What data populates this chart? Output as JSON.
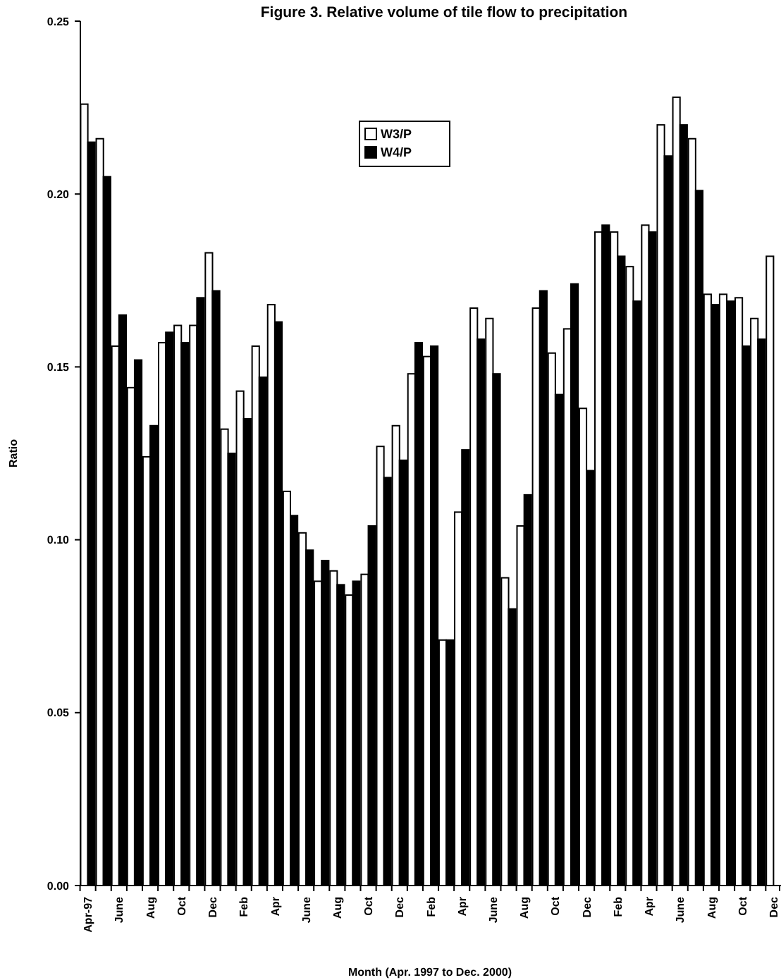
{
  "chart_data": {
    "type": "bar",
    "title": "Figure 3. Relative volume of tile flow to precipitation",
    "xlabel": "Month (Apr. 1997 to Dec. 2000)",
    "ylabel": "Ratio",
    "categories": [
      "Apr-97",
      null,
      "June",
      null,
      "Aug",
      null,
      "Oct",
      null,
      "Dec",
      null,
      "Feb",
      null,
      "Apr",
      null,
      "June",
      null,
      "Aug",
      null,
      "Oct",
      null,
      "Dec",
      null,
      "Feb",
      null,
      "Apr",
      null,
      "June",
      null,
      "Aug",
      null,
      "Oct",
      null,
      "Dec",
      null,
      "Feb",
      null,
      "Apr",
      null,
      "June",
      null,
      "Aug",
      null,
      "Oct",
      null,
      "Dec"
    ],
    "series": [
      {
        "name": "W3/P",
        "color": "#ffffff",
        "values": [
          0.226,
          0.216,
          0.156,
          0.144,
          0.124,
          0.157,
          0.162,
          0.162,
          0.183,
          0.132,
          0.143,
          0.156,
          0.168,
          0.114,
          0.102,
          0.088,
          0.091,
          0.084,
          0.09,
          0.127,
          0.133,
          0.148,
          0.153,
          0.071,
          0.108,
          0.167,
          0.164,
          0.089,
          0.104,
          0.167,
          0.154,
          0.161,
          0.138,
          0.189,
          0.189,
          0.179,
          0.191,
          0.22,
          0.228,
          0.216,
          0.171,
          0.171,
          0.17,
          0.164,
          0.182
        ]
      },
      {
        "name": "W4/P",
        "color": "#000000",
        "values": [
          0.215,
          0.205,
          0.165,
          0.152,
          0.133,
          0.16,
          0.157,
          0.17,
          0.172,
          0.125,
          0.135,
          0.147,
          0.163,
          0.107,
          0.097,
          0.094,
          0.087,
          0.088,
          0.104,
          0.118,
          0.123,
          0.157,
          0.156,
          0.071,
          0.126,
          0.158,
          0.148,
          0.08,
          0.113,
          0.172,
          0.142,
          0.174,
          0.12,
          0.191,
          0.182,
          0.169,
          0.189,
          0.211,
          0.22,
          0.201,
          0.168,
          0.169,
          0.156,
          0.158,
          null
        ]
      }
    ],
    "ylim": [
      0,
      0.25
    ],
    "yticks": [
      {
        "value": 0,
        "label": "0.00"
      },
      {
        "value": 0.05,
        "label": "0.05"
      },
      {
        "value": 0.1,
        "label": "0.10"
      },
      {
        "value": 0.15,
        "label": "0.15"
      },
      {
        "value": 0.2,
        "label": "0.20"
      },
      {
        "value": 0.25,
        "label": "0.25"
      }
    ],
    "legend": "top",
    "grid": false
  }
}
